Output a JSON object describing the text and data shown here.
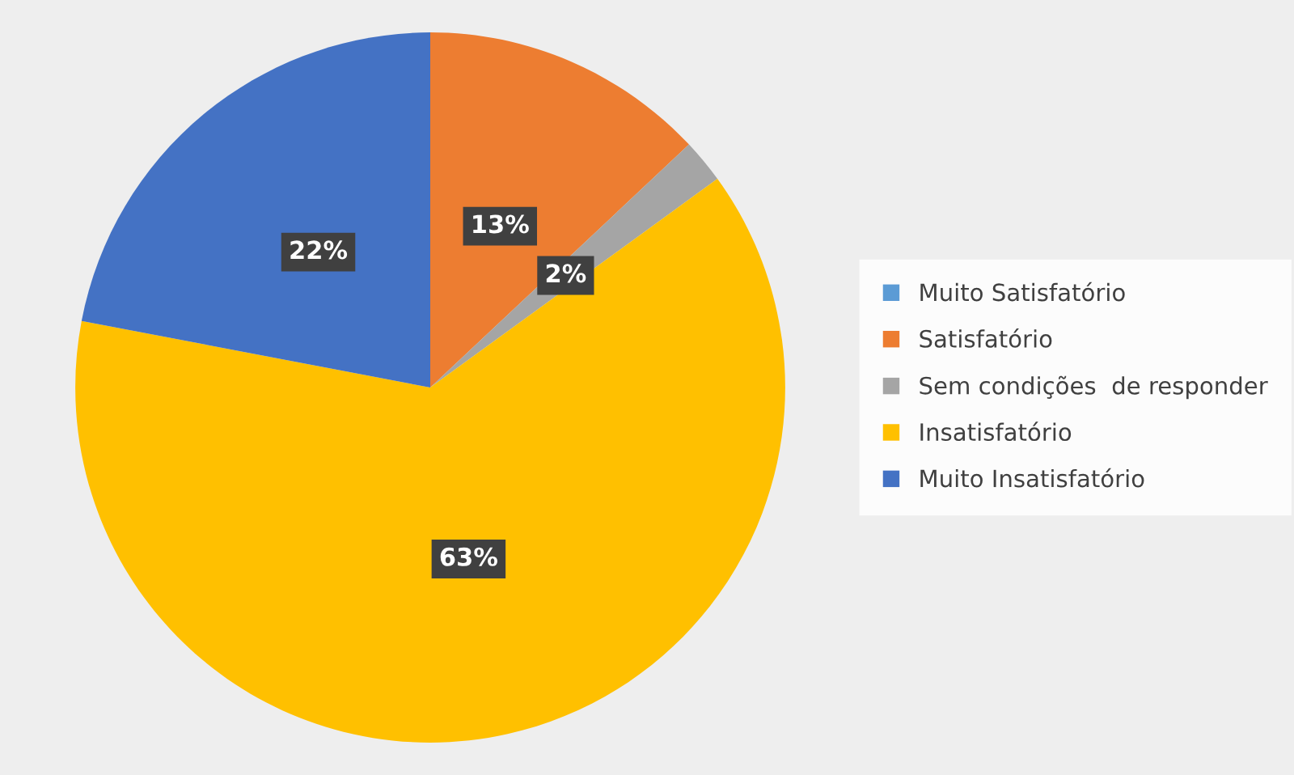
{
  "chart_data": {
    "type": "pie",
    "categories": [
      "Muito Satisfatório",
      "Satisfatório",
      "Sem condições  de responder",
      "Insatisfatório",
      "Muito Insatisfatório"
    ],
    "values": [
      0,
      13,
      2,
      63,
      22
    ],
    "colors": [
      "#5b9bd5",
      "#ed7d31",
      "#a5a5a5",
      "#ffc000",
      "#4472c4"
    ],
    "value_labels": [
      null,
      "13%",
      "2%",
      "63%",
      "22%"
    ],
    "legend": "right"
  }
}
